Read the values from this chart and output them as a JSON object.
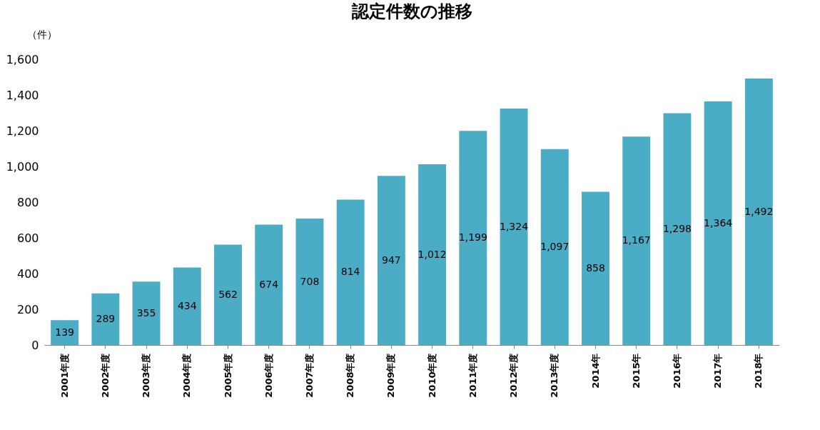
{
  "chart_data": {
    "type": "bar",
    "title": "認定件数の推移",
    "ylabel": "（件）",
    "categories": [
      "2001年度",
      "2002年度",
      "2003年度",
      "2004年度",
      "2005年度",
      "2006年度",
      "2007年度",
      "2008年度",
      "2009年度",
      "2010年度",
      "2011年度",
      "2012年度",
      "2013年度",
      "2014年",
      "2015年",
      "2016年",
      "2017年",
      "2018年"
    ],
    "values": [
      139,
      289,
      355,
      434,
      562,
      674,
      708,
      814,
      947,
      1012,
      1199,
      1324,
      1097,
      858,
      1167,
      1298,
      1364,
      1492
    ],
    "value_labels": [
      "139",
      "289",
      "355",
      "434",
      "562",
      "674",
      "708",
      "814",
      "947",
      "1,012",
      "1,199",
      "1,324",
      "1,097",
      "858",
      "1,167",
      "1,298",
      "1,364",
      "1,492"
    ],
    "color": "#4bacc6",
    "ylim": [
      0,
      1600
    ],
    "yticks": [
      {
        "value": 0,
        "label": "0"
      },
      {
        "value": 200,
        "label": "200"
      },
      {
        "value": 400,
        "label": "400"
      },
      {
        "value": 600,
        "label": "600"
      },
      {
        "value": 800,
        "label": "800"
      },
      {
        "value": 1000,
        "label": "1,000"
      },
      {
        "value": 1200,
        "label": "1,200"
      },
      {
        "value": 1400,
        "label": "1,400"
      },
      {
        "value": 1600,
        "label": "1,600"
      }
    ],
    "grid": false
  }
}
